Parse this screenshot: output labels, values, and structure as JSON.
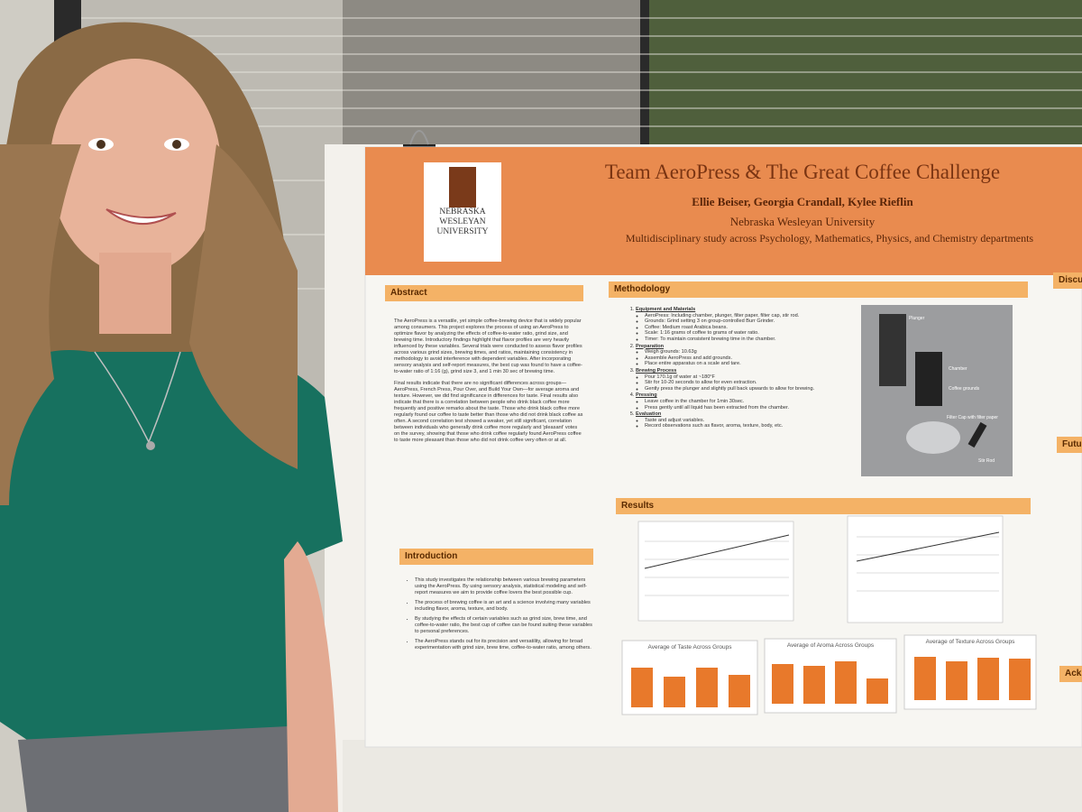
{
  "poster": {
    "header": {
      "title": "Team AeroPress & The Great Coffee Challenge",
      "authors": "Ellie Beiser, Georgia Crandall, Kylee Rieflin",
      "university": "Nebraska Wesleyan University",
      "study": "Multidisciplinary study across Psychology, Mathematics, Physics, and Chemistry departments",
      "logo": [
        "NEBRASKA",
        "WESLEYAN",
        "UNIVERSITY"
      ]
    },
    "abstract": {
      "heading": "Abstract",
      "paragraphs": [
        "The AeroPress is a versatile, yet simple coffee-brewing device that is widely popular among consumers. This project explores the process of using an AeroPress to optimize flavor by analyzing the effects of coffee-to-water ratio, grind size, and brewing time. Introductory findings highlight that flavor profiles are very heavily influenced by these variables. Several trials were conducted to assess flavor profiles across various grind sizes, brewing times, and ratios, maintaining consistency in methodology to avoid interference with dependent variables. After incorporating sensory analysis and self-report measures, the best cup was found to have a coffee-to-water ratio of 1:16 (g), grind size 3, and 1 min 30 sec of brewing time.",
        "Final results indicate that there are no significant differences across groups—AeroPress, French Press, Pour Over, and Build Your Own—for average aroma and texture. However, we did find significance in differences for taste. Final results also indicate that there is a correlation between people who drink black coffee more frequently and positive remarks about the taste. Those who drink black coffee more regularly found our coffee to taste better than those who did not drink black coffee as often. A second correlation test showed a weaker, yet still significant, correlation between individuals who generally drink coffee more regularly and 'pleasant' votes on the survey, showing that those who drink coffee regularly found AeroPress coffee to taste more pleasant than those who did not drink coffee very often or at all."
      ]
    },
    "introduction": {
      "heading": "Introduction",
      "items": [
        "This study investigates the relationship between various brewing parameters using the AeroPress. By using sensory analysis, statistical modeling and self-report measures we aim to provide coffee lovers the best possible cup.",
        "The process of brewing coffee is an art and a science involving many variables including flavor, aroma, texture, and body.",
        "By studying the effects of certain variables such as grind size, brew time, and coffee-to-water ratio, the best cup of coffee can be found suiting these variables to personal preferences.",
        "The AeroPress stands out for its precision and versatility, allowing for broad experimentation with grind size, brew time, coffee-to-water ratio, among others."
      ]
    },
    "methodology": {
      "heading": "Methodology",
      "steps": [
        {
          "title": "Equipment and Materials",
          "items": [
            "AeroPress: Including chamber, plunger, filter paper, filter cap, stir rod.",
            "Grounds: Grind setting 3 on group-controlled Burr Grinder.",
            "Coffee: Medium roast Arabica beans.",
            "Scale: 1:16 grams of coffee to grams of water ratio.",
            "Timer: To maintain consistent brewing time in the chamber."
          ]
        },
        {
          "title": "Preparation",
          "items": [
            "Weigh grounds: 10.63g",
            "Assemble AeroPress and add grounds.",
            "Place entire apparatus on a scale and tare."
          ]
        },
        {
          "title": "Brewing Process",
          "items": [
            "Pour 170.1g of water at ~180°F",
            "Stir for 10-20 seconds to allow for even extraction.",
            "Gently press the plunger and slightly pull back upwards to allow for brewing."
          ]
        },
        {
          "title": "Pressing",
          "items": [
            "Leave coffee in the chamber for 1min 30sec.",
            "Press gently until all liquid has been extracted from the chamber."
          ]
        },
        {
          "title": "Evaluation",
          "items": [
            "Taste and adjust variables.",
            "Record observations such as flavor, aroma, texture, body, etc."
          ]
        }
      ],
      "photo_labels": [
        "Plunger",
        "Chamber",
        "Coffee grounds",
        "Filter Cap with filter paper",
        "Stir Rod"
      ]
    },
    "results": {
      "heading": "Results",
      "chart_titles": [
        "Average of Taste Across Groups",
        "Average of Aroma Across Groups",
        "Average of Texture Across Groups"
      ]
    },
    "right_column": {
      "headings": [
        "Discu",
        "Futu",
        "Ack"
      ]
    }
  }
}
